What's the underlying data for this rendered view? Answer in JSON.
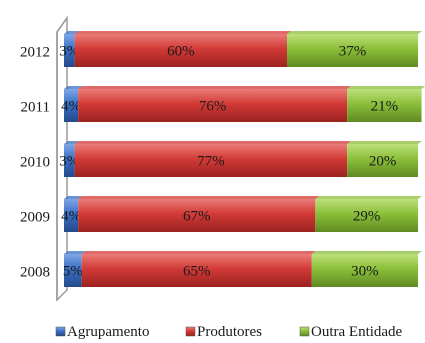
{
  "chart_data": {
    "type": "bar",
    "orientation": "horizontal",
    "stacked": "100%",
    "categories": [
      "2012",
      "2011",
      "2010",
      "2009",
      "2008"
    ],
    "series": [
      {
        "name": "Agrupamento",
        "values": [
          3,
          4,
          3,
          4,
          5
        ],
        "labels": [
          "3%",
          "4%",
          "3%",
          "4%",
          "5%"
        ],
        "color": "#3a6fc4"
      },
      {
        "name": "Produtores",
        "values": [
          60,
          76,
          77,
          67,
          65
        ],
        "labels": [
          "60%",
          "76%",
          "77%",
          "67%",
          "65%"
        ],
        "color": "#d23a36"
      },
      {
        "name": "Outra Entidade",
        "values": [
          37,
          21,
          20,
          29,
          30
        ],
        "labels": [
          "37%",
          "21%",
          "20%",
          "29%",
          "30%"
        ],
        "color": "#8bbf3a"
      }
    ],
    "xlim": [
      0,
      100
    ],
    "grid": false,
    "legend": "bottom",
    "style": "3d"
  }
}
